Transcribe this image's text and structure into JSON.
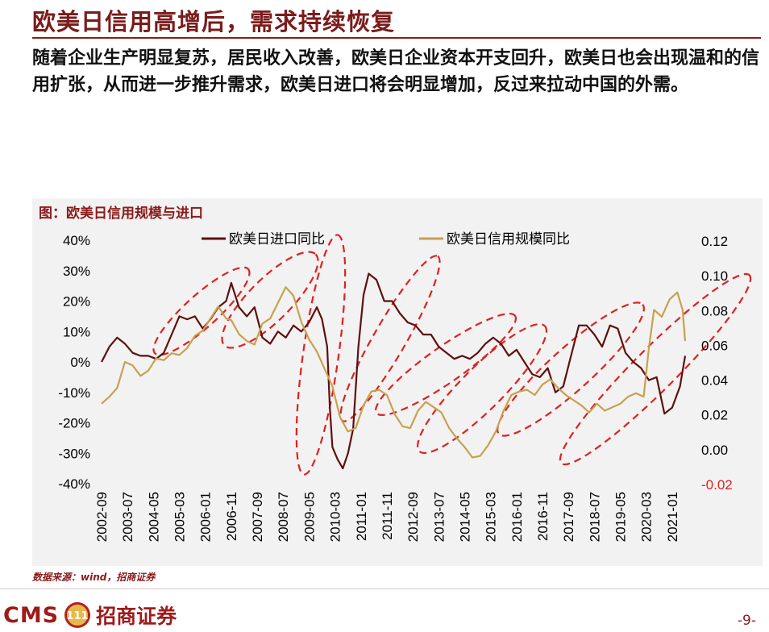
{
  "header": {
    "title": "欧美日信用高增后，需求持续恢复"
  },
  "body": {
    "text": "随着企业生产明显复苏，居民收入改善，欧美日企业资本开支回升，欧美日也会出现温和的信用扩张，从而进一步推升需求，欧美日进口将会明显增加，反过来拉动中国的外需。"
  },
  "chart": {
    "panel_title": "图：欧美日信用规模与进口",
    "source": "数据来源：wind，招商证券"
  },
  "chart_data": {
    "type": "line",
    "x_tick_labels": [
      "2002-09",
      "2003-07",
      "2004-05",
      "2005-03",
      "2006-01",
      "2006-11",
      "2007-09",
      "2008-07",
      "2009-05",
      "2010-03",
      "2011-01",
      "2011-11",
      "2012-09",
      "2013-07",
      "2014-05",
      "2015-03",
      "2016-01",
      "2016-11",
      "2017-09",
      "2018-07",
      "2019-05",
      "2020-03",
      "2021-01"
    ],
    "x_range": [
      "2002-09",
      "2021-06"
    ],
    "y_left": {
      "range": [
        -40,
        40
      ],
      "ticks": [
        "40%",
        "30%",
        "20%",
        "10%",
        "0%",
        "-10%",
        "-20%",
        "-30%",
        "-40%"
      ]
    },
    "y_right": {
      "range": [
        -0.02,
        0.12
      ],
      "ticks": [
        "0.12",
        "0.10",
        "0.08",
        "0.06",
        "0.04",
        "0.02",
        "0.00",
        "-0.02"
      ]
    },
    "legend_position": "top-center",
    "grid": false,
    "series": [
      {
        "name": "欧美日进口同比",
        "axis": "left",
        "color": "#5e0f0f",
        "points": [
          [
            "2002-09",
            0
          ],
          [
            "2002-12",
            5
          ],
          [
            "2003-03",
            8
          ],
          [
            "2003-06",
            6
          ],
          [
            "2003-09",
            3
          ],
          [
            "2003-12",
            2
          ],
          [
            "2004-03",
            2
          ],
          [
            "2004-06",
            1
          ],
          [
            "2004-09",
            3
          ],
          [
            "2004-12",
            9
          ],
          [
            "2005-03",
            15
          ],
          [
            "2005-06",
            14
          ],
          [
            "2005-09",
            15
          ],
          [
            "2005-12",
            11
          ],
          [
            "2006-03",
            14
          ],
          [
            "2006-06",
            18
          ],
          [
            "2006-09",
            20
          ],
          [
            "2006-11",
            26
          ],
          [
            "2007-02",
            18
          ],
          [
            "2007-05",
            15
          ],
          [
            "2007-08",
            18
          ],
          [
            "2007-11",
            8
          ],
          [
            "2008-02",
            6
          ],
          [
            "2008-05",
            10
          ],
          [
            "2008-08",
            8
          ],
          [
            "2008-11",
            12
          ],
          [
            "2009-02",
            10
          ],
          [
            "2009-05",
            13
          ],
          [
            "2009-08",
            18
          ],
          [
            "2009-10",
            14
          ],
          [
            "2009-12",
            5
          ],
          [
            "2010-01",
            -15
          ],
          [
            "2010-02",
            -28
          ],
          [
            "2010-04",
            -32
          ],
          [
            "2010-06",
            -35
          ],
          [
            "2010-08",
            -30
          ],
          [
            "2010-10",
            -22
          ],
          [
            "2010-12",
            5
          ],
          [
            "2011-02",
            22
          ],
          [
            "2011-04",
            29
          ],
          [
            "2011-07",
            27
          ],
          [
            "2011-10",
            20
          ],
          [
            "2012-01",
            20
          ],
          [
            "2012-04",
            16
          ],
          [
            "2012-07",
            13
          ],
          [
            "2012-10",
            12
          ],
          [
            "2013-01",
            9
          ],
          [
            "2013-04",
            9
          ],
          [
            "2013-07",
            5
          ],
          [
            "2013-10",
            3
          ],
          [
            "2014-01",
            1
          ],
          [
            "2014-04",
            2
          ],
          [
            "2014-07",
            1
          ],
          [
            "2014-10",
            3
          ],
          [
            "2015-01",
            6
          ],
          [
            "2015-04",
            8
          ],
          [
            "2015-07",
            6
          ],
          [
            "2015-10",
            2
          ],
          [
            "2016-01",
            4
          ],
          [
            "2016-04",
            0
          ],
          [
            "2016-07",
            -4
          ],
          [
            "2016-10",
            -5
          ],
          [
            "2017-01",
            -2
          ],
          [
            "2017-04",
            -10
          ],
          [
            "2017-07",
            -8
          ],
          [
            "2017-10",
            2
          ],
          [
            "2018-01",
            12
          ],
          [
            "2018-04",
            12
          ],
          [
            "2018-07",
            9
          ],
          [
            "2018-10",
            5
          ],
          [
            "2019-01",
            12
          ],
          [
            "2019-04",
            11
          ],
          [
            "2019-07",
            3
          ],
          [
            "2019-10",
            0
          ],
          [
            "2020-01",
            -2
          ],
          [
            "2020-04",
            -6
          ],
          [
            "2020-07",
            -5
          ],
          [
            "2020-10",
            -17
          ],
          [
            "2021-01",
            -15
          ],
          [
            "2021-04",
            -8
          ],
          [
            "2021-06",
            2
          ]
        ]
      },
      {
        "name": "欧美日信用规模同比",
        "axis": "right",
        "color": "#c8a050",
        "points": [
          [
            "2002-09",
            0.026
          ],
          [
            "2002-12",
            0.03
          ],
          [
            "2003-03",
            0.035
          ],
          [
            "2003-06",
            0.05
          ],
          [
            "2003-09",
            0.048
          ],
          [
            "2003-12",
            0.042
          ],
          [
            "2004-03",
            0.045
          ],
          [
            "2004-06",
            0.052
          ],
          [
            "2004-09",
            0.051
          ],
          [
            "2004-12",
            0.055
          ],
          [
            "2005-03",
            0.054
          ],
          [
            "2005-06",
            0.058
          ],
          [
            "2005-09",
            0.065
          ],
          [
            "2005-12",
            0.068
          ],
          [
            "2006-03",
            0.075
          ],
          [
            "2006-06",
            0.082
          ],
          [
            "2006-09",
            0.075
          ],
          [
            "2006-11",
            0.074
          ],
          [
            "2007-02",
            0.066
          ],
          [
            "2007-05",
            0.062
          ],
          [
            "2007-08",
            0.06
          ],
          [
            "2007-11",
            0.072
          ],
          [
            "2008-02",
            0.075
          ],
          [
            "2008-05",
            0.084
          ],
          [
            "2008-08",
            0.093
          ],
          [
            "2008-11",
            0.088
          ],
          [
            "2009-02",
            0.073
          ],
          [
            "2009-05",
            0.063
          ],
          [
            "2009-08",
            0.056
          ],
          [
            "2009-11",
            0.046
          ],
          [
            "2010-02",
            0.036
          ],
          [
            "2010-05",
            0.018
          ],
          [
            "2010-08",
            0.01
          ],
          [
            "2010-11",
            0.012
          ],
          [
            "2011-02",
            0.025
          ],
          [
            "2011-05",
            0.033
          ],
          [
            "2011-08",
            0.034
          ],
          [
            "2011-11",
            0.031
          ],
          [
            "2012-02",
            0.02
          ],
          [
            "2012-05",
            0.013
          ],
          [
            "2012-08",
            0.012
          ],
          [
            "2012-11",
            0.022
          ],
          [
            "2013-02",
            0.027
          ],
          [
            "2013-05",
            0.024
          ],
          [
            "2013-08",
            0.021
          ],
          [
            "2013-11",
            0.012
          ],
          [
            "2014-02",
            0.006
          ],
          [
            "2014-05",
            0.001
          ],
          [
            "2014-08",
            -0.005
          ],
          [
            "2014-11",
            -0.004
          ],
          [
            "2015-02",
            0.002
          ],
          [
            "2015-05",
            0.01
          ],
          [
            "2015-08",
            0.022
          ],
          [
            "2015-11",
            0.031
          ],
          [
            "2016-02",
            0.033
          ],
          [
            "2016-05",
            0.034
          ],
          [
            "2016-08",
            0.031
          ],
          [
            "2016-11",
            0.037
          ],
          [
            "2017-02",
            0.04
          ],
          [
            "2017-05",
            0.035
          ],
          [
            "2017-08",
            0.031
          ],
          [
            "2017-11",
            0.028
          ],
          [
            "2018-02",
            0.025
          ],
          [
            "2018-05",
            0.021
          ],
          [
            "2018-08",
            0.026
          ],
          [
            "2018-11",
            0.022
          ],
          [
            "2019-02",
            0.024
          ],
          [
            "2019-05",
            0.026
          ],
          [
            "2019-08",
            0.03
          ],
          [
            "2019-11",
            0.032
          ],
          [
            "2020-02",
            0.03
          ],
          [
            "2020-04",
            0.058
          ],
          [
            "2020-06",
            0.08
          ],
          [
            "2020-09",
            0.076
          ],
          [
            "2020-12",
            0.086
          ],
          [
            "2021-03",
            0.09
          ],
          [
            "2021-05",
            0.08
          ],
          [
            "2021-06",
            0.062
          ]
        ]
      }
    ]
  },
  "footer": {
    "logo_text": "CMS",
    "logo_badge": "111",
    "company": "招商证券",
    "page": "-9-"
  },
  "colors": {
    "brand": "#9e1b1b",
    "import_line": "#5e0f0f",
    "credit_line": "#c8a050",
    "annotation": "#e02020"
  }
}
